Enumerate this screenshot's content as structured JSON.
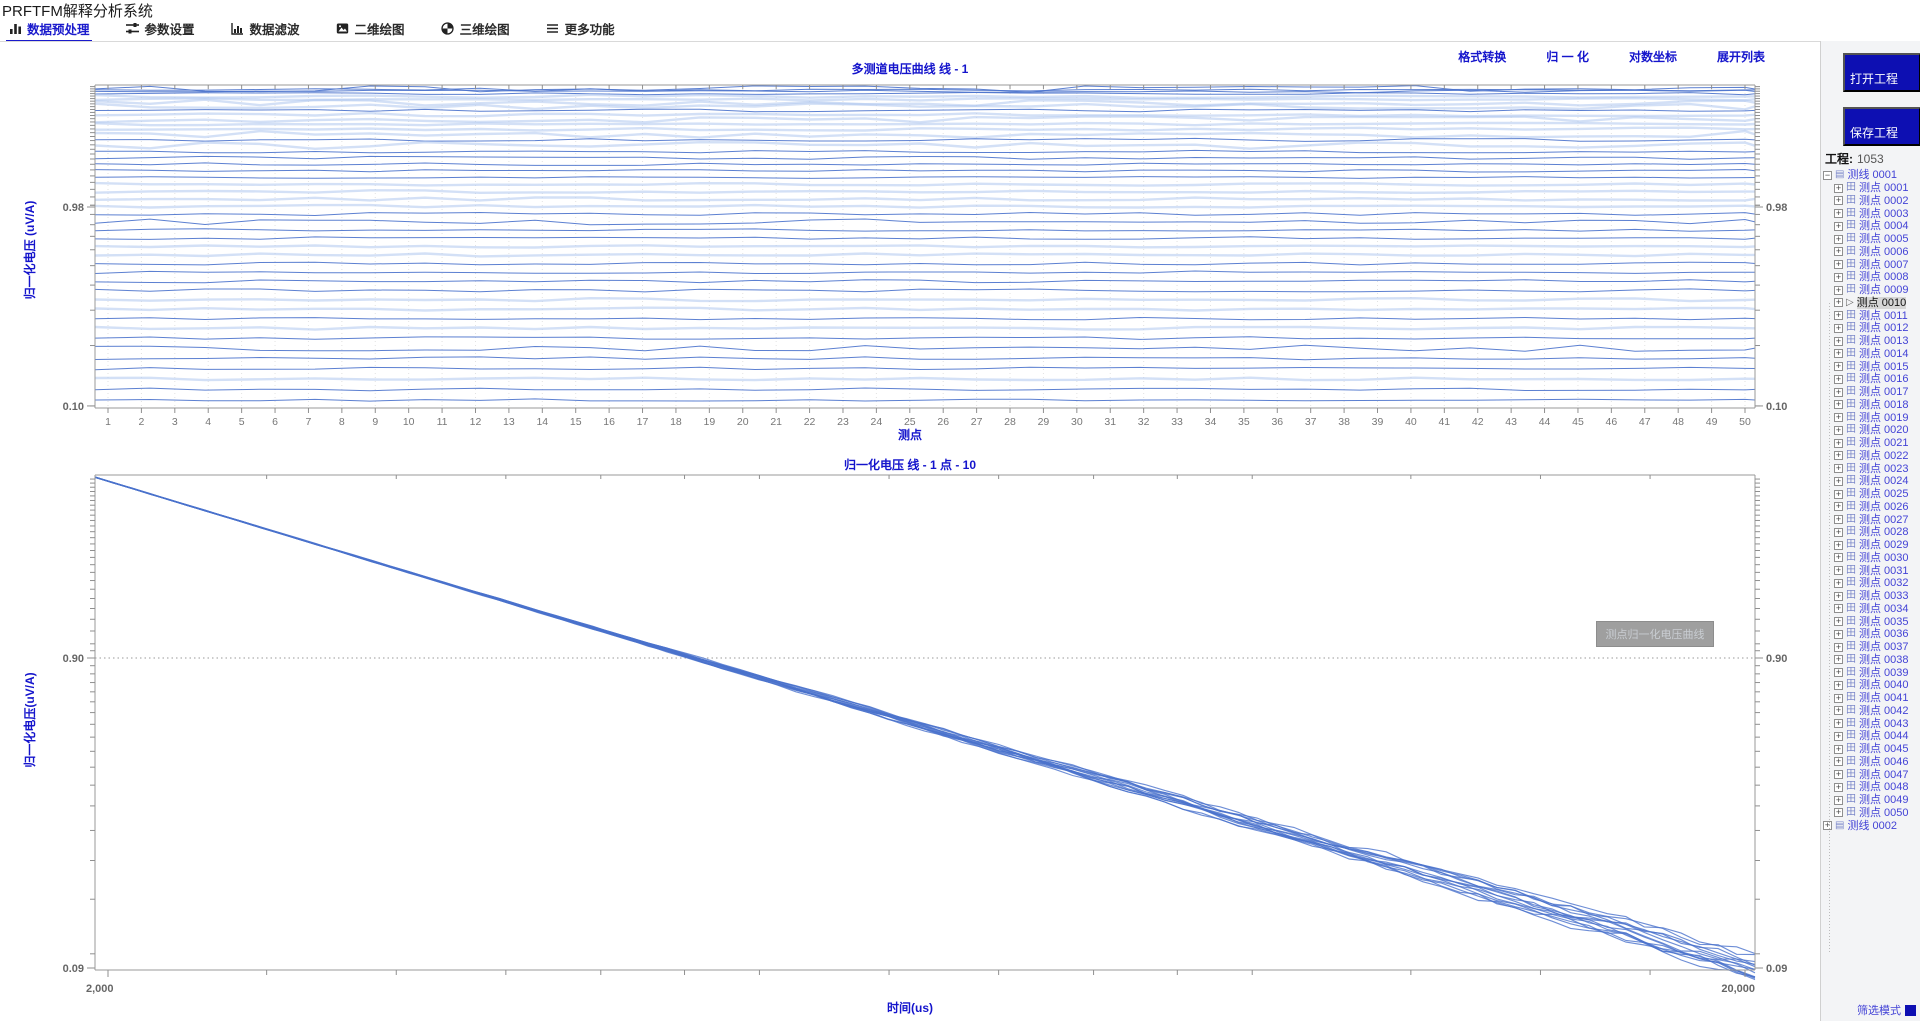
{
  "app": {
    "title": "PRFTFM解释分析系统"
  },
  "colors": {
    "accent_blue": "#1515cc",
    "line_blue": "#4a72cc",
    "line_blue_light": "#aec6ee",
    "button_blue": "#0d0fb2",
    "tick_gray": "#8a8a8a",
    "label_gray": "#666666"
  },
  "menu": {
    "items": [
      {
        "name": "data-preprocess",
        "label": "数据预处理",
        "icon": "bar-chart-icon",
        "active": true
      },
      {
        "name": "param-settings",
        "label": "参数设置",
        "icon": "sliders-icon",
        "active": false
      },
      {
        "name": "data-filter",
        "label": "数据滤波",
        "icon": "histogram-icon",
        "active": false
      },
      {
        "name": "plot-2d",
        "label": "二维绘图",
        "icon": "image-icon",
        "active": false
      },
      {
        "name": "plot-3d",
        "label": "三维绘图",
        "icon": "pie-icon",
        "active": false
      },
      {
        "name": "more-functions",
        "label": "更多功能",
        "icon": "menu-icon",
        "active": false
      }
    ]
  },
  "actions": [
    {
      "name": "format-convert",
      "label": "格式转换"
    },
    {
      "name": "normalize",
      "label": "归 一 化"
    },
    {
      "name": "log-axis",
      "label": "对数坐标"
    },
    {
      "name": "expand-list",
      "label": "展开列表"
    }
  ],
  "sidebar": {
    "open_button": "打开工程",
    "save_button": "保存工程",
    "project_label": "工程:",
    "project_value": "1053",
    "filter_label": "筛选模式",
    "tree": [
      {
        "label": "测线 0001",
        "expanded": true,
        "children": [
          {
            "label": "测点 0001"
          },
          {
            "label": "测点 0002"
          },
          {
            "label": "测点 0003"
          },
          {
            "label": "测点 0004"
          },
          {
            "label": "测点 0005"
          },
          {
            "label": "测点 0006"
          },
          {
            "label": "测点 0007"
          },
          {
            "label": "测点 0008"
          },
          {
            "label": "测点 0009"
          },
          {
            "label": "测点 0010",
            "selected": true
          },
          {
            "label": "测点 0011"
          },
          {
            "label": "测点 0012"
          },
          {
            "label": "测点 0013"
          },
          {
            "label": "测点 0014"
          },
          {
            "label": "测点 0015"
          },
          {
            "label": "测点 0016"
          },
          {
            "label": "测点 0017"
          },
          {
            "label": "测点 0018"
          },
          {
            "label": "测点 0019"
          },
          {
            "label": "测点 0020"
          },
          {
            "label": "测点 0021"
          },
          {
            "label": "测点 0022"
          },
          {
            "label": "测点 0023"
          },
          {
            "label": "测点 0024"
          },
          {
            "label": "测点 0025"
          },
          {
            "label": "测点 0026"
          },
          {
            "label": "测点 0027"
          },
          {
            "label": "测点 0028"
          },
          {
            "label": "测点 0029"
          },
          {
            "label": "测点 0030"
          },
          {
            "label": "测点 0031"
          },
          {
            "label": "测点 0032"
          },
          {
            "label": "测点 0033"
          },
          {
            "label": "测点 0034"
          },
          {
            "label": "测点 0035"
          },
          {
            "label": "测点 0036"
          },
          {
            "label": "测点 0037"
          },
          {
            "label": "测点 0038"
          },
          {
            "label": "测点 0039"
          },
          {
            "label": "测点 0040"
          },
          {
            "label": "测点 0041"
          },
          {
            "label": "测点 0042"
          },
          {
            "label": "测点 0043"
          },
          {
            "label": "测点 0044"
          },
          {
            "label": "测点 0045"
          },
          {
            "label": "测点 0046"
          },
          {
            "label": "测点 0047"
          },
          {
            "label": "测点 0048"
          },
          {
            "label": "测点 0049"
          },
          {
            "label": "测点 0050"
          }
        ]
      },
      {
        "label": "测线 0002",
        "expanded": false,
        "children": []
      }
    ]
  },
  "chart_data": [
    {
      "type": "line",
      "title": "多测道电压曲线 线 - 1",
      "xlabel": "测点",
      "ylabel": "归一化电压 (uV/A)",
      "x_ticks": [
        1,
        2,
        3,
        4,
        5,
        6,
        7,
        8,
        9,
        10,
        11,
        12,
        13,
        14,
        15,
        16,
        17,
        18,
        19,
        20,
        21,
        22,
        23,
        24,
        25,
        26,
        27,
        28,
        29,
        30,
        31,
        32,
        33,
        34,
        35,
        36,
        37,
        38,
        39,
        40,
        41,
        42,
        43,
        44,
        45,
        46,
        47,
        48,
        49,
        50
      ],
      "x_range": [
        1,
        50
      ],
      "y_scale": "log",
      "ylim": [
        0.098,
        4.0
      ],
      "y_labeled_ticks": [
        "0.98",
        "0.10"
      ],
      "y_labeled_values": [
        0.98,
        0.1
      ],
      "grid": "vertical-dotted",
      "num_curves": 46,
      "curve_value_range": [
        0.105,
        3.6
      ],
      "legend": "none"
    },
    {
      "type": "line",
      "title": "归一化电压 线 - 1  点 - 10",
      "xlabel": "时间(us)",
      "ylabel": "归一化电压(uV/A)",
      "x_scale": "log",
      "xlim": [
        2000,
        20000
      ],
      "x_labeled_ticks": [
        "2,000",
        "20,000"
      ],
      "x_labeled_values": [
        2000,
        20000
      ],
      "x_minor_ticks": [
        2500,
        3000,
        3500,
        4000,
        4500,
        5000,
        6000,
        7000,
        8000,
        9000,
        10000,
        12500,
        15000,
        17500
      ],
      "y_scale": "log",
      "ylim": [
        0.09,
        3.5
      ],
      "y_labeled_ticks": [
        "0.90",
        "0.09"
      ],
      "y_labeled_values": [
        0.9,
        0.09
      ],
      "ref_line_value": 0.9,
      "num_traces": 14,
      "series_trend": {
        "start": {
          "t": 1963,
          "v": 3.45
        },
        "end": {
          "t": 20000,
          "v": 0.093
        },
        "power_exponent": -1.56
      },
      "overlay_button": "测点归一化电压曲线",
      "legend": "none"
    }
  ]
}
